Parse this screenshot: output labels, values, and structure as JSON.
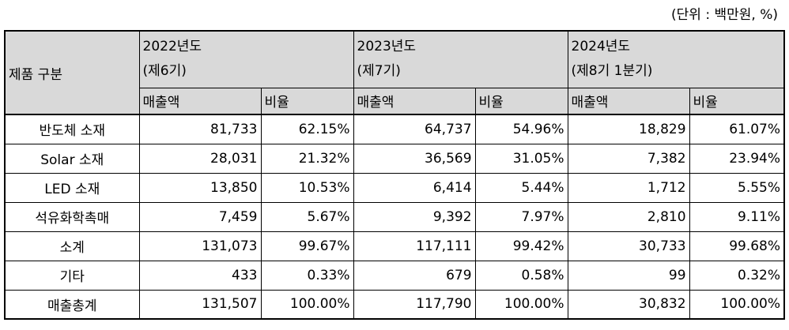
{
  "unit_label": "(단위 : 백만원, %)",
  "header": {
    "category_label": "제품 구분",
    "periods": [
      {
        "year": "2022년도",
        "term": "(제6기)",
        "sales_label": "매출액",
        "ratio_label": "비율"
      },
      {
        "year": "2023년도",
        "term": "(제7기)",
        "sales_label": "매출액",
        "ratio_label": "비율"
      },
      {
        "year": "2024년도",
        "term": "(제8기 1분기)",
        "sales_label": "매출액",
        "ratio_label": "비율"
      }
    ]
  },
  "rows": [
    {
      "category": "반도체 소재",
      "cells": [
        "81,733",
        "62.15%",
        "64,737",
        "54.96%",
        "18,829",
        "61.07%"
      ]
    },
    {
      "category": "Solar 소재",
      "cells": [
        "28,031",
        "21.32%",
        "36,569",
        "31.05%",
        "7,382",
        "23.94%"
      ]
    },
    {
      "category": "LED 소재",
      "cells": [
        "13,850",
        "10.53%",
        "6,414",
        "5.44%",
        "1,712",
        "5.55%"
      ]
    },
    {
      "category": "석유화학촉매",
      "cells": [
        "7,459",
        "5.67%",
        "9,392",
        "7.97%",
        "2,810",
        "9.11%"
      ]
    },
    {
      "category": "소계",
      "cells": [
        "131,073",
        "99.67%",
        "117,111",
        "99.42%",
        "30,733",
        "99.68%"
      ]
    },
    {
      "category": "기타",
      "cells": [
        "433",
        "0.33%",
        "679",
        "0.58%",
        "99",
        "0.32%"
      ]
    },
    {
      "category": "매출총계",
      "cells": [
        "131,507",
        "100.00%",
        "117,790",
        "100.00%",
        "30,832",
        "100.00%"
      ]
    }
  ]
}
